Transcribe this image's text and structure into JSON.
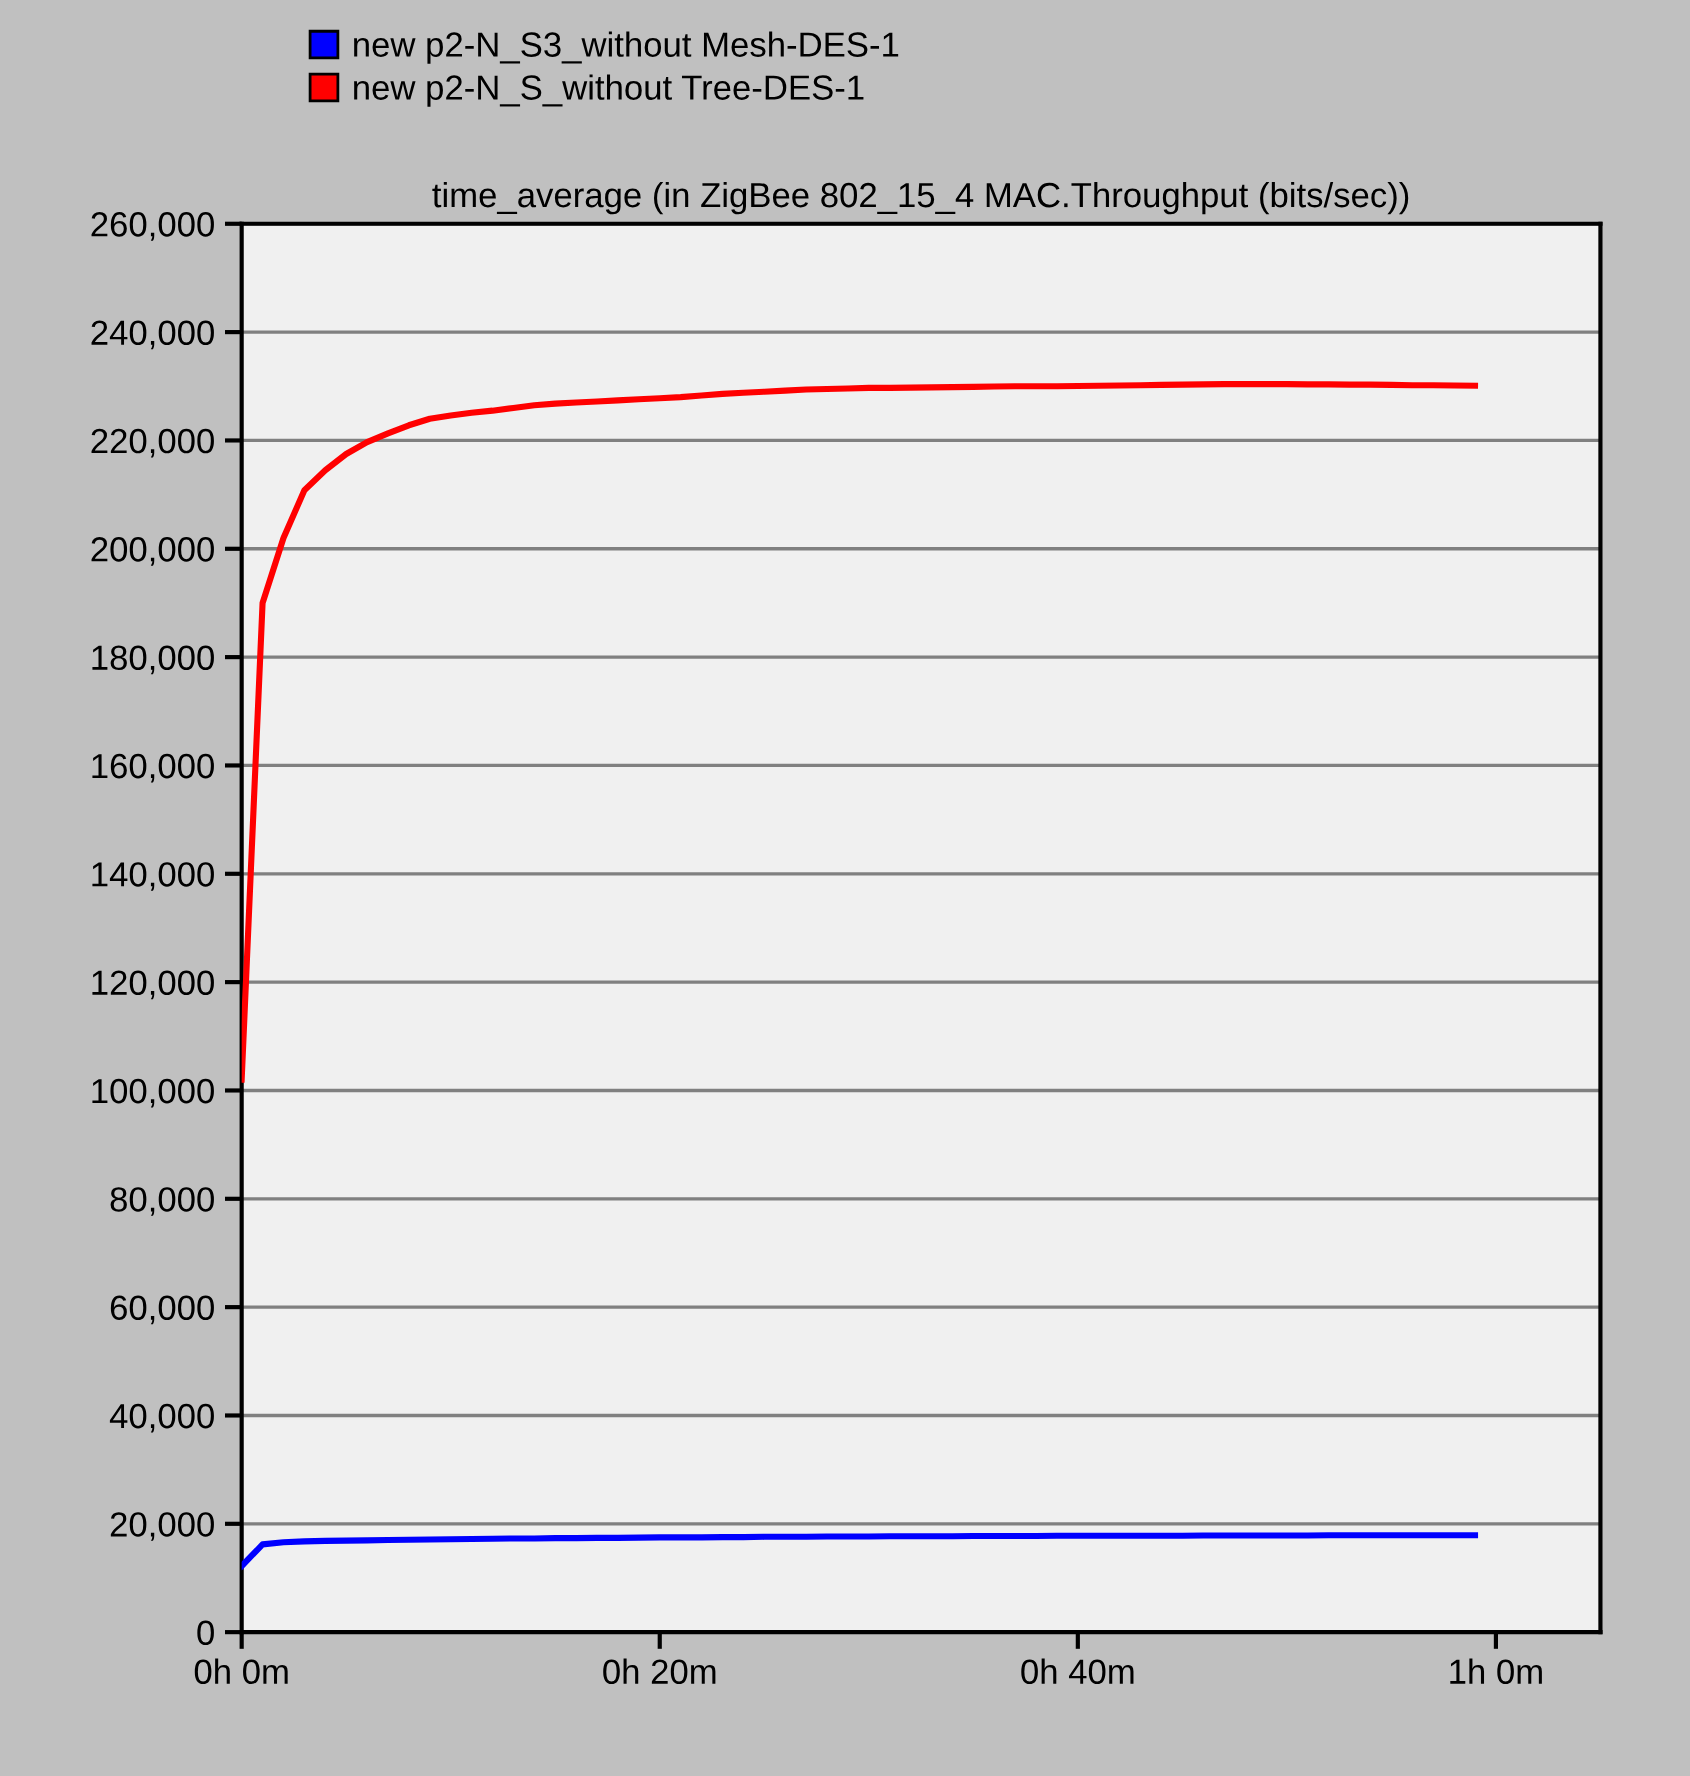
{
  "chart_data": {
    "type": "line",
    "title": "time_average (in ZigBee 802_15_4 MAC.Throughput (bits/sec))",
    "categories": [
      "0h 0m",
      null,
      null,
      null,
      null,
      null,
      null,
      null,
      null,
      null,
      null,
      null,
      null,
      null,
      null,
      null,
      null,
      null,
      null,
      null,
      "0h 20m",
      null,
      null,
      null,
      null,
      null,
      null,
      null,
      null,
      null,
      null,
      null,
      null,
      null,
      null,
      null,
      null,
      null,
      null,
      null,
      "0h 40m",
      null,
      null,
      null,
      null,
      null,
      null,
      null,
      null,
      null,
      null,
      null,
      null,
      null,
      null,
      null,
      null,
      null,
      null,
      null,
      "1h 0m",
      null,
      null,
      null,
      null,
      null
    ],
    "series": [
      {
        "name": "new p2-N_S3_without Mesh-DES-1",
        "color": "#0000ff",
        "values": [
          12200,
          16200,
          16600,
          16750,
          16850,
          16900,
          16950,
          17000,
          17050,
          17100,
          17150,
          17200,
          17250,
          17300,
          17300,
          17350,
          17350,
          17400,
          17400,
          17450,
          17500,
          17500,
          17500,
          17550,
          17550,
          17600,
          17600,
          17600,
          17650,
          17650,
          17650,
          17700,
          17700,
          17700,
          17700,
          17750,
          17750,
          17750,
          17750,
          17800,
          17800,
          17800,
          17800,
          17800,
          17800,
          17800,
          17850,
          17850,
          17850,
          17850,
          17850,
          17850,
          17900,
          17900,
          17900,
          17900,
          17900,
          17900,
          17900,
          17900,
          null,
          null,
          null,
          null,
          null,
          null
        ]
      },
      {
        "name": "new p2-N_S_without Tree-DES-1",
        "color": "#ff0000",
        "values": [
          102000,
          190000,
          202000,
          210800,
          214500,
          217500,
          219700,
          221300,
          222800,
          224000,
          224600,
          225100,
          225500,
          226000,
          226500,
          226800,
          227000,
          227200,
          227400,
          227600,
          227800,
          228000,
          228300,
          228600,
          228800,
          229000,
          229200,
          229400,
          229500,
          229600,
          229700,
          229700,
          229750,
          229800,
          229850,
          229900,
          229950,
          230000,
          230000,
          230000,
          230050,
          230100,
          230150,
          230200,
          230250,
          230300,
          230350,
          230400,
          230400,
          230400,
          230400,
          230350,
          230350,
          230300,
          230300,
          230250,
          230200,
          230200,
          230150,
          230100,
          null,
          null,
          null,
          null,
          null,
          null
        ]
      }
    ],
    "ylim": [
      0,
      260000
    ],
    "yticks": [
      {
        "value": 0,
        "label": "0"
      },
      {
        "value": 20000,
        "label": "20,000"
      },
      {
        "value": 40000,
        "label": "40,000"
      },
      {
        "value": 60000,
        "label": "60,000"
      },
      {
        "value": 80000,
        "label": "80,000"
      },
      {
        "value": 100000,
        "label": "100,000"
      },
      {
        "value": 120000,
        "label": "120,000"
      },
      {
        "value": 140000,
        "label": "140,000"
      },
      {
        "value": 160000,
        "label": "160,000"
      },
      {
        "value": 180000,
        "label": "180,000"
      },
      {
        "value": 200000,
        "label": "200,000"
      },
      {
        "value": 220000,
        "label": "220,000"
      },
      {
        "value": 240000,
        "label": "240,000"
      },
      {
        "value": 260000,
        "label": "260,000"
      }
    ],
    "grid": "y",
    "legend": "top left",
    "marker": "none",
    "line_style": "solid"
  }
}
